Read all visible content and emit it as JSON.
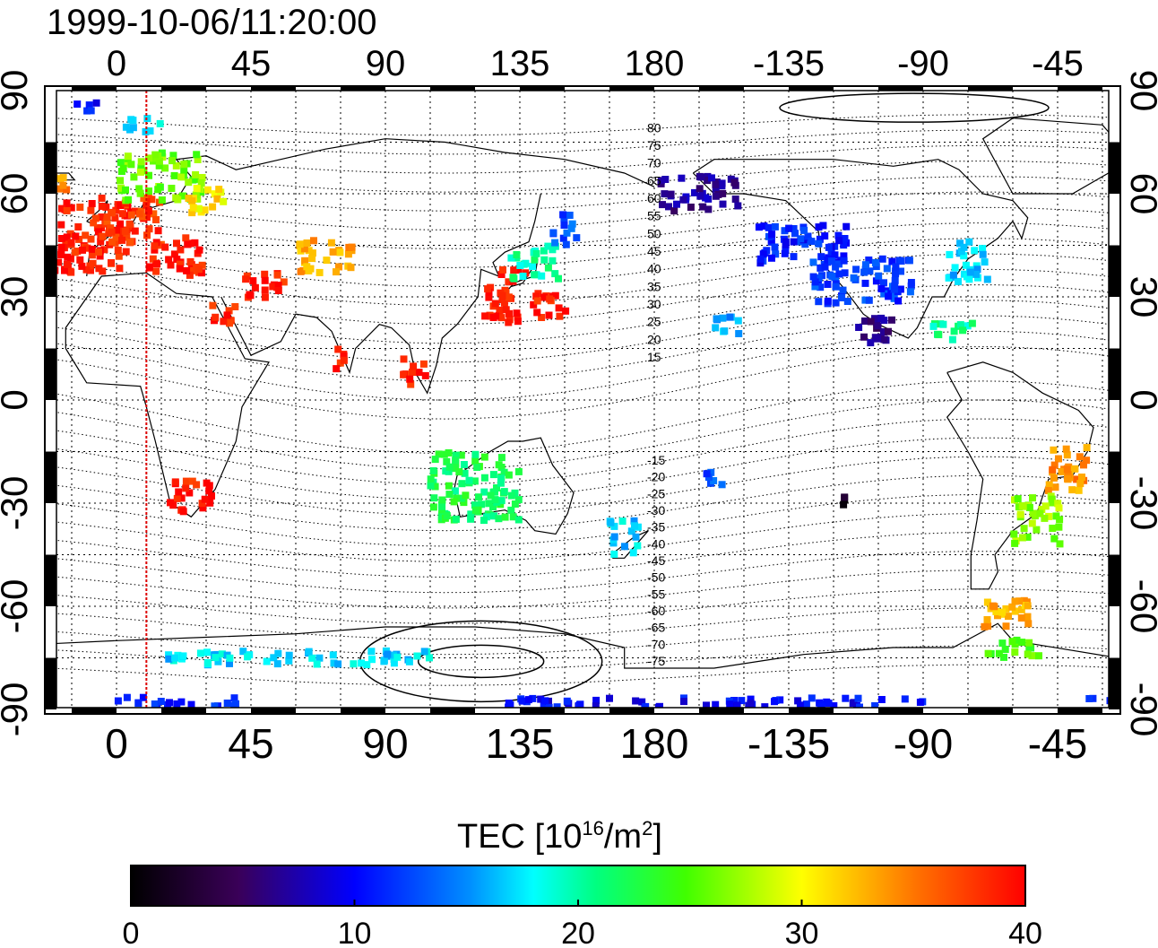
{
  "timestamp": "1999-10-06/11:20:00",
  "top_lon_labels": [
    "0",
    "45",
    "90",
    "135",
    "180",
    "-135",
    "-90",
    "-45"
  ],
  "bottom_lon_labels": [
    "0",
    "45",
    "90",
    "135",
    "180",
    "-135",
    "-90",
    "-45"
  ],
  "left_lat_labels": [
    "90",
    "60",
    "30",
    "0",
    "-30",
    "-60",
    "-90"
  ],
  "right_lat_labels": [
    "90",
    "60",
    "30",
    "0",
    "-30",
    "-60",
    "-90"
  ],
  "contour_labels": [
    "80",
    "75",
    "70",
    "65",
    "60",
    "55",
    "50",
    "45",
    "40",
    "35",
    "30",
    "25",
    "20",
    "15",
    "-15",
    "-20",
    "-25",
    "-30",
    "-35",
    "-40",
    "-45",
    "-50",
    "-55",
    "-60",
    "-65",
    "-70",
    "-75"
  ],
  "colorbar": {
    "title_main": "TEC  [10",
    "title_sup1": "16",
    "title_mid": "/m",
    "title_sup2": "2",
    "title_end": "]",
    "ticks": [
      "0",
      "10",
      "20",
      "30",
      "40"
    ],
    "min": 0,
    "max": 40
  },
  "colors": {
    "frame": "#000000",
    "meridian_marker": "#dd0000"
  },
  "map_data": {
    "projection": "cylindrical",
    "lon_start": -25,
    "lon_end": 335,
    "lat_min": -90,
    "lat_max": 90,
    "marker_meridian_lon": 10,
    "tec_patches": [
      {
        "lon": -15,
        "lat": 47,
        "w": 40,
        "h": 22,
        "tec": 39
      },
      {
        "lon": 5,
        "lat": 52,
        "w": 20,
        "h": 14,
        "tec": 38
      },
      {
        "lon": 20,
        "lat": 42,
        "w": 18,
        "h": 12,
        "tec": 39
      },
      {
        "lon": 15,
        "lat": 65,
        "w": 28,
        "h": 14,
        "tec": 26
      },
      {
        "lon": 30,
        "lat": 58,
        "w": 12,
        "h": 8,
        "tec": 31
      },
      {
        "lon": -20,
        "lat": 63,
        "w": 8,
        "h": 6,
        "tec": 34
      },
      {
        "lon": 10,
        "lat": 80,
        "w": 14,
        "h": 4,
        "tec": 18
      },
      {
        "lon": -10,
        "lat": 85,
        "w": 10,
        "h": 3,
        "tec": 10
      },
      {
        "lon": 50,
        "lat": 33,
        "w": 14,
        "h": 8,
        "tec": 39
      },
      {
        "lon": 70,
        "lat": 42,
        "w": 18,
        "h": 10,
        "tec": 33
      },
      {
        "lon": 35,
        "lat": 25,
        "w": 10,
        "h": 6,
        "tec": 39
      },
      {
        "lon": 75,
        "lat": 12,
        "w": 6,
        "h": 6,
        "tec": 39
      },
      {
        "lon": 100,
        "lat": 8,
        "w": 8,
        "h": 8,
        "tec": 39
      },
      {
        "lon": 130,
        "lat": 30,
        "w": 14,
        "h": 16,
        "tec": 39
      },
      {
        "lon": 140,
        "lat": 40,
        "w": 16,
        "h": 10,
        "tec": 20
      },
      {
        "lon": 145,
        "lat": 28,
        "w": 12,
        "h": 8,
        "tec": 39
      },
      {
        "lon": 150,
        "lat": 50,
        "w": 8,
        "h": 10,
        "tec": 13
      },
      {
        "lon": 25,
        "lat": -28,
        "w": 14,
        "h": 10,
        "tec": 39
      },
      {
        "lon": 120,
        "lat": -25,
        "w": 30,
        "h": 20,
        "tec": 22
      },
      {
        "lon": 170,
        "lat": -40,
        "w": 10,
        "h": 10,
        "tec": 17
      },
      {
        "lon": 195,
        "lat": 60,
        "w": 26,
        "h": 10,
        "tec": 7
      },
      {
        "lon": 230,
        "lat": 45,
        "w": 30,
        "h": 12,
        "tec": 11
      },
      {
        "lon": 250,
        "lat": 35,
        "w": 34,
        "h": 14,
        "tec": 12
      },
      {
        "lon": 285,
        "lat": 40,
        "w": 14,
        "h": 12,
        "tec": 17
      },
      {
        "lon": 255,
        "lat": 20,
        "w": 14,
        "h": 8,
        "tec": 6
      },
      {
        "lon": 280,
        "lat": 20,
        "w": 14,
        "h": 6,
        "tec": 20
      },
      {
        "lon": 205,
        "lat": 22,
        "w": 10,
        "h": 6,
        "tec": 16
      },
      {
        "lon": 318,
        "lat": -20,
        "w": 14,
        "h": 14,
        "tec": 34
      },
      {
        "lon": 308,
        "lat": -35,
        "w": 16,
        "h": 14,
        "tec": 27
      },
      {
        "lon": 300,
        "lat": -62,
        "w": 20,
        "h": 8,
        "tec": 33
      },
      {
        "lon": 300,
        "lat": -72,
        "w": 18,
        "h": 6,
        "tec": 25
      },
      {
        "lon": 245,
        "lat": -30,
        "w": 4,
        "h": 4,
        "tec": 1
      },
      {
        "lon": 200,
        "lat": -22,
        "w": 6,
        "h": 6,
        "tec": 13
      },
      {
        "lon": 60,
        "lat": -75,
        "w": 90,
        "h": 4,
        "tec": 17
      },
      {
        "lon": 200,
        "lat": -88,
        "w": 140,
        "h": 3,
        "tec": 10
      },
      {
        "lon": 20,
        "lat": -88,
        "w": 40,
        "h": 3,
        "tec": 11
      },
      {
        "lon": 330,
        "lat": -88,
        "w": 10,
        "h": 3,
        "tec": 11
      }
    ]
  }
}
